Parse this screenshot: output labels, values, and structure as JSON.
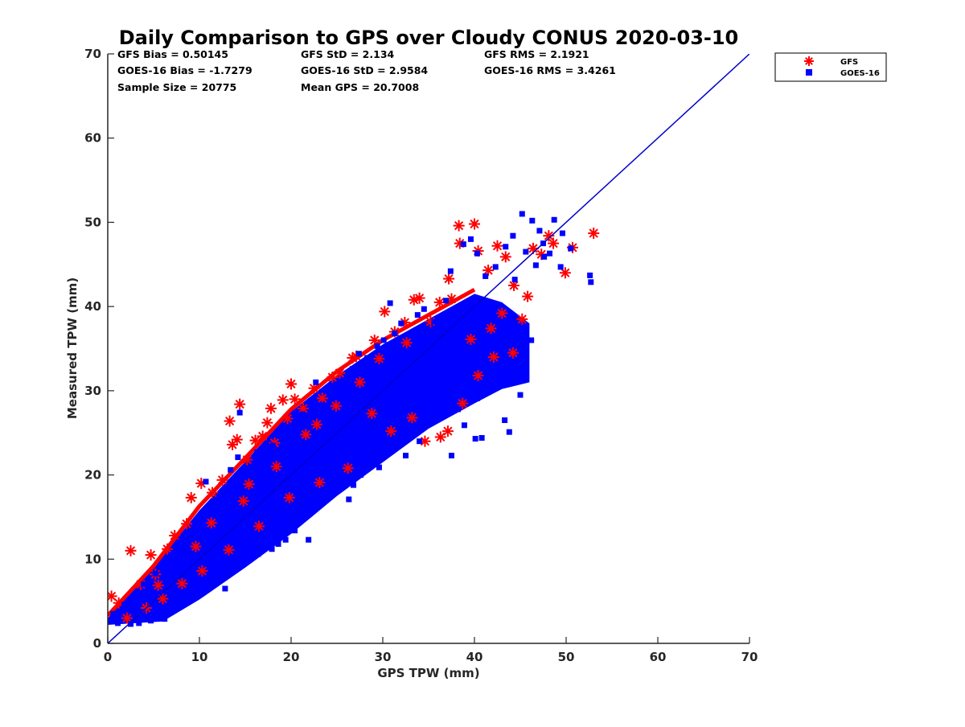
{
  "chart_data": {
    "type": "scatter",
    "title": "Daily Comparison to GPS over Cloudy CONUS 2020-03-10",
    "xlabel": "GPS TPW (mm)",
    "ylabel": "Measured TPW (mm)",
    "xlim": [
      0,
      70
    ],
    "ylim": [
      0,
      70
    ],
    "xticks": [
      "0",
      "10",
      "20",
      "30",
      "40",
      "50",
      "60",
      "70"
    ],
    "yticks": [
      "0",
      "10",
      "20",
      "30",
      "40",
      "50",
      "60",
      "70"
    ],
    "grid": false,
    "legend_position": "outside-top-right",
    "stats": [
      "GFS Bias = 0.50145",
      "GFS StD = 2.134",
      "GFS RMS = 2.1921",
      "GOES-16 Bias = -1.7279",
      "GOES-16 StD = 2.9584",
      "GOES-16 RMS = 3.4261",
      "Sample Size = 20775",
      "Mean GPS = 20.7008"
    ],
    "reference_line": {
      "x": [
        0,
        70
      ],
      "y": [
        0,
        70
      ],
      "color": "#0000cc"
    },
    "series": [
      {
        "name": "GFS",
        "marker": "asterisk",
        "color": "#ff0000",
        "points": [
          [
            0.4,
            5.6
          ],
          [
            1.2,
            4.8
          ],
          [
            2.5,
            11.0
          ],
          [
            4.7,
            10.5
          ],
          [
            3.6,
            7.0
          ],
          [
            5.2,
            8.2
          ],
          [
            6.5,
            11.2
          ],
          [
            7.3,
            12.8
          ],
          [
            8.6,
            14.2
          ],
          [
            9.1,
            17.3
          ],
          [
            10.2,
            19.0
          ],
          [
            11.4,
            17.9
          ],
          [
            12.5,
            19.4
          ],
          [
            13.3,
            26.4
          ],
          [
            13.6,
            23.6
          ],
          [
            14.1,
            24.2
          ],
          [
            14.4,
            28.4
          ],
          [
            15.2,
            21.8
          ],
          [
            16.1,
            24.1
          ],
          [
            16.9,
            24.6
          ],
          [
            17.4,
            26.2
          ],
          [
            17.8,
            27.9
          ],
          [
            18.2,
            23.8
          ],
          [
            19.1,
            28.9
          ],
          [
            19.6,
            26.7
          ],
          [
            20.0,
            30.8
          ],
          [
            20.4,
            29.0
          ],
          [
            21.3,
            27.9
          ],
          [
            22.5,
            30.3
          ],
          [
            23.4,
            29.1
          ],
          [
            24.5,
            31.6
          ],
          [
            25.3,
            32.1
          ],
          [
            26.7,
            33.9
          ],
          [
            27.1,
            34.1
          ],
          [
            29.1,
            36.0
          ],
          [
            30.2,
            39.4
          ],
          [
            31.3,
            37.0
          ],
          [
            32.4,
            38.1
          ],
          [
            33.4,
            40.8
          ],
          [
            34.0,
            41.0
          ],
          [
            35.2,
            38.2
          ],
          [
            36.2,
            40.5
          ],
          [
            37.2,
            43.3
          ],
          [
            38.3,
            49.6
          ],
          [
            38.4,
            47.5
          ],
          [
            40.0,
            49.8
          ],
          [
            40.4,
            46.6
          ],
          [
            41.5,
            44.3
          ],
          [
            42.5,
            47.2
          ],
          [
            43.4,
            45.9
          ],
          [
            44.3,
            42.5
          ],
          [
            45.2,
            38.5
          ],
          [
            45.8,
            41.2
          ],
          [
            46.4,
            46.9
          ],
          [
            47.3,
            46.2
          ],
          [
            48.1,
            48.4
          ],
          [
            48.6,
            47.5
          ],
          [
            49.9,
            44.0
          ],
          [
            50.7,
            47.0
          ],
          [
            53.0,
            48.7
          ],
          [
            34.6,
            24.0
          ],
          [
            36.3,
            24.5
          ],
          [
            37.1,
            25.2
          ],
          [
            38.7,
            28.5
          ],
          [
            40.4,
            31.8
          ],
          [
            42.1,
            34.0
          ],
          [
            44.2,
            34.5
          ],
          [
            30.9,
            25.2
          ],
          [
            33.2,
            26.8
          ],
          [
            28.8,
            27.3
          ],
          [
            26.2,
            20.8
          ],
          [
            23.1,
            19.1
          ],
          [
            19.8,
            17.3
          ],
          [
            16.5,
            13.9
          ],
          [
            13.2,
            11.1
          ],
          [
            10.3,
            8.6
          ],
          [
            8.1,
            7.1
          ],
          [
            6.0,
            5.3
          ],
          [
            4.2,
            4.2
          ],
          [
            2.1,
            3.0
          ],
          [
            11.3,
            14.3
          ],
          [
            15.4,
            18.9
          ],
          [
            21.6,
            24.8
          ],
          [
            27.5,
            31.0
          ],
          [
            32.6,
            35.7
          ],
          [
            37.5,
            40.9
          ],
          [
            24.9,
            28.2
          ],
          [
            18.4,
            21.0
          ],
          [
            9.6,
            11.5
          ],
          [
            5.5,
            6.9
          ],
          [
            39.6,
            36.1
          ],
          [
            43.0,
            39.2
          ],
          [
            41.8,
            37.4
          ],
          [
            29.6,
            33.8
          ],
          [
            22.8,
            26.0
          ],
          [
            14.8,
            16.9
          ]
        ]
      },
      {
        "name": "GOES-16",
        "marker": "square",
        "color": "#0000ff",
        "points": [
          [
            45.2,
            51.0
          ],
          [
            46.3,
            50.2
          ],
          [
            48.7,
            50.3
          ],
          [
            50.5,
            46.9
          ],
          [
            52.6,
            43.7
          ],
          [
            52.7,
            42.9
          ],
          [
            49.4,
            44.7
          ],
          [
            47.6,
            45.9
          ],
          [
            44.4,
            43.2
          ],
          [
            46.2,
            36.0
          ],
          [
            45.1,
            33.2
          ],
          [
            45.0,
            29.5
          ],
          [
            43.3,
            31.3
          ],
          [
            42.0,
            31.1
          ],
          [
            42.5,
            30.5
          ],
          [
            40.3,
            29.1
          ],
          [
            40.8,
            24.4
          ],
          [
            40.1,
            24.3
          ],
          [
            43.3,
            26.5
          ],
          [
            43.8,
            25.1
          ],
          [
            38.9,
            25.9
          ],
          [
            38.2,
            27.8
          ],
          [
            37.5,
            22.3
          ],
          [
            36.8,
            27.6
          ],
          [
            35.0,
            27.3
          ],
          [
            34.0,
            24.0
          ],
          [
            33.2,
            25.5
          ],
          [
            31.7,
            23.5
          ],
          [
            32.5,
            22.3
          ],
          [
            29.6,
            20.9
          ],
          [
            29.8,
            22.8
          ],
          [
            27.6,
            20.0
          ],
          [
            26.8,
            18.8
          ],
          [
            26.3,
            17.1
          ],
          [
            24.2,
            18.1
          ],
          [
            22.4,
            16.4
          ],
          [
            21.9,
            12.3
          ],
          [
            20.4,
            13.4
          ],
          [
            19.4,
            12.3
          ],
          [
            18.6,
            11.8
          ],
          [
            17.9,
            11.2
          ],
          [
            16.4,
            10.6
          ],
          [
            14.3,
            9.5
          ],
          [
            13.1,
            8.6
          ],
          [
            12.8,
            6.5
          ],
          [
            11.0,
            6.5
          ],
          [
            9.8,
            6.0
          ],
          [
            8.3,
            4.8
          ],
          [
            7.4,
            4.3
          ],
          [
            6.2,
            2.9
          ],
          [
            4.7,
            2.7
          ],
          [
            3.4,
            2.4
          ],
          [
            2.5,
            2.3
          ],
          [
            1.1,
            2.4
          ],
          [
            0.6,
            3.5
          ],
          [
            1.8,
            4.6
          ],
          [
            3.0,
            5.7
          ],
          [
            3.9,
            7.0
          ],
          [
            5.2,
            8.3
          ],
          [
            6.1,
            9.2
          ],
          [
            7.0,
            10.5
          ],
          [
            8.4,
            11.9
          ],
          [
            9.2,
            12.7
          ],
          [
            10.4,
            14.1
          ],
          [
            10.7,
            19.2
          ],
          [
            11.6,
            15.9
          ],
          [
            12.5,
            16.1
          ],
          [
            13.4,
            20.6
          ],
          [
            14.2,
            22.1
          ],
          [
            14.4,
            27.4
          ],
          [
            15.7,
            21.0
          ],
          [
            16.3,
            22.7
          ],
          [
            17.1,
            23.0
          ],
          [
            18.0,
            23.5
          ],
          [
            19.2,
            25.3
          ],
          [
            20.3,
            25.8
          ],
          [
            21.2,
            27.2
          ],
          [
            22.7,
            31.0
          ],
          [
            23.3,
            28.3
          ],
          [
            24.4,
            29.2
          ],
          [
            25.0,
            30.6
          ],
          [
            26.7,
            32.6
          ],
          [
            27.4,
            34.4
          ],
          [
            28.3,
            33.9
          ],
          [
            29.4,
            35.3
          ],
          [
            30.1,
            36.0
          ],
          [
            30.5,
            33.8
          ],
          [
            30.8,
            40.4
          ],
          [
            31.3,
            36.8
          ],
          [
            32.0,
            38.0
          ],
          [
            33.8,
            39.0
          ],
          [
            34.5,
            39.7
          ],
          [
            35.6,
            38.2
          ],
          [
            36.9,
            40.7
          ],
          [
            37.4,
            44.2
          ],
          [
            38.8,
            47.4
          ],
          [
            39.6,
            48.0
          ],
          [
            40.3,
            46.3
          ],
          [
            41.2,
            43.6
          ],
          [
            42.3,
            44.7
          ],
          [
            43.4,
            47.1
          ],
          [
            44.2,
            48.4
          ],
          [
            45.6,
            46.5
          ],
          [
            46.7,
            44.9
          ],
          [
            47.5,
            47.5
          ],
          [
            48.2,
            46.3
          ],
          [
            49.6,
            48.7
          ],
          [
            47.1,
            49.0
          ]
        ]
      }
    ]
  }
}
